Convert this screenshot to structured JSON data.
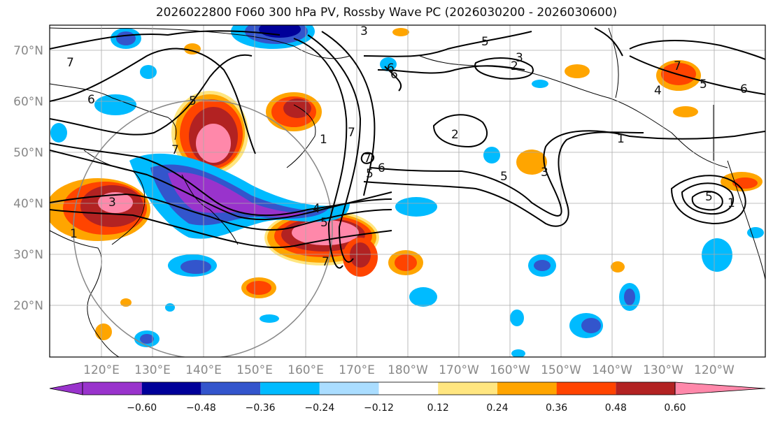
{
  "title": "2026022800 F060 300 hPa PV, Rossby Wave PC (2026030200 - 2026030600)",
  "lat_labels": [
    "70°N",
    "60°N",
    "50°N",
    "40°N",
    "30°N",
    "20°N"
  ],
  "lon_labels": [
    "120°E",
    "130°E",
    "140°E",
    "150°E",
    "160°E",
    "170°E",
    "180°W",
    "170°W",
    "160°W",
    "150°W",
    "140°W",
    "130°W",
    "120°W"
  ],
  "colorbar": {
    "colors": [
      "#9933cc",
      "#000099",
      "#3355cc",
      "#00bbff",
      "#aaddff",
      "#ffffff",
      "#ffe680",
      "#ffa500",
      "#ff4400",
      "#b22222",
      "#ff88aa"
    ],
    "ticks": [
      "−0.60",
      "−0.48",
      "−0.36",
      "−0.24",
      "−0.12",
      "0.12",
      "0.24",
      "0.36",
      "0.48",
      "0.60"
    ]
  },
  "contour_labels": [
    "7",
    "6",
    "3",
    "5",
    "3",
    "2",
    "6",
    "7",
    "4",
    "6",
    "5",
    "2",
    "7",
    "6",
    "3",
    "7",
    "5",
    "1",
    "5",
    "3",
    "4",
    "5",
    "1",
    "5",
    "1",
    "7",
    "5",
    "7",
    "1",
    "6"
  ]
}
